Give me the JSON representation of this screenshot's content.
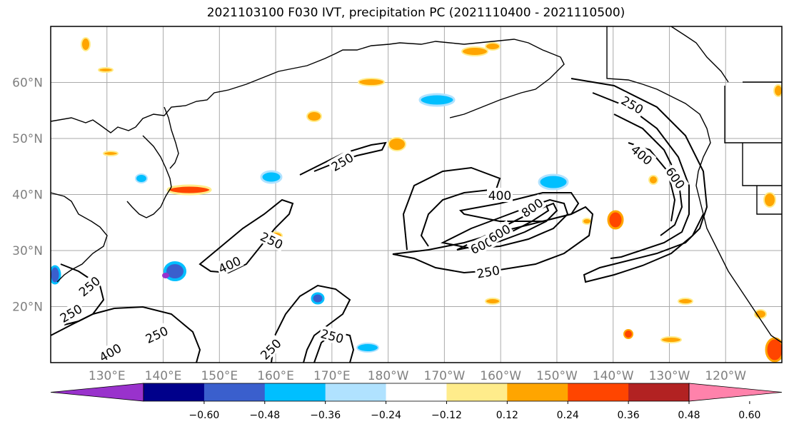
{
  "title": "2021103100 F030 IVT, precipitation PC (2021110400 - 2021110500)",
  "map": {
    "lon_range": [
      120,
      250
    ],
    "lat_range": [
      10,
      70
    ],
    "lon_ticks": [
      {
        "lon": 130,
        "label": "130°E"
      },
      {
        "lon": 140,
        "label": "140°E"
      },
      {
        "lon": 150,
        "label": "150°E"
      },
      {
        "lon": 160,
        "label": "160°E"
      },
      {
        "lon": 170,
        "label": "170°E"
      },
      {
        "lon": 180,
        "label": "180°W"
      },
      {
        "lon": 190,
        "label": "170°W"
      },
      {
        "lon": 200,
        "label": "160°W"
      },
      {
        "lon": 210,
        "label": "150°W"
      },
      {
        "lon": 220,
        "label": "140°W"
      },
      {
        "lon": 230,
        "label": "130°W"
      },
      {
        "lon": 240,
        "label": "120°W"
      }
    ],
    "lat_ticks": [
      {
        "lat": 20,
        "label": "20°N"
      },
      {
        "lat": 30,
        "label": "30°N"
      },
      {
        "lat": 40,
        "label": "40°N"
      },
      {
        "lat": 50,
        "label": "50°N"
      },
      {
        "lat": 60,
        "label": "60°N"
      }
    ],
    "grid": true,
    "contour_labels": [
      "250",
      "400",
      "600",
      "800"
    ]
  },
  "colorbar": {
    "extend": "both",
    "colors": [
      "#9932cc",
      "#00008b",
      "#3a5fcd",
      "#00bfff",
      "#b0e2ff",
      "#ffffff",
      "#ffec8b",
      "#ffa500",
      "#ff4500",
      "#b22222",
      "#ff82ab"
    ],
    "tick_labels": [
      "−0.60",
      "−0.48",
      "−0.36",
      "−0.24",
      "−0.12",
      "0.12",
      "0.24",
      "0.36",
      "0.48",
      "0.60"
    ]
  }
}
